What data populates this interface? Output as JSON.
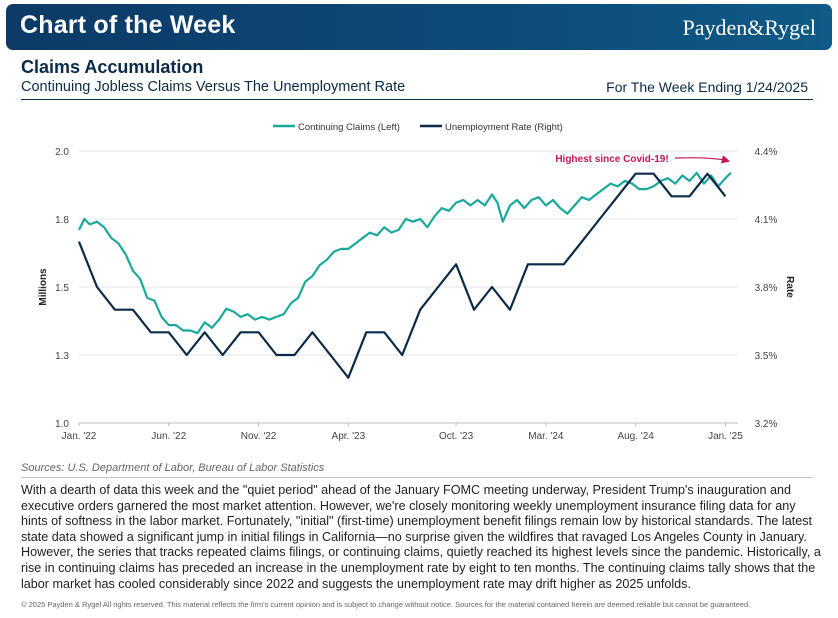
{
  "banner": {
    "title": "Chart of the Week",
    "brand": "Payden&Rygel"
  },
  "header": {
    "headline": "Claims Accumulation",
    "subtitle": "Continuing Jobless Claims Versus The Unemployment Rate",
    "week": "For The Week Ending 1/24/2025"
  },
  "colors": {
    "claims": "#1aa89c",
    "rate": "#0b2a48",
    "annotation": "#c2185b",
    "banner": "#0d3a66"
  },
  "chart_data": {
    "type": "line",
    "legend": [
      "Continuing Claims (Left)",
      "Unemployment Rate (Right)"
    ],
    "legend_position": "top-center",
    "ylabel_left": "Millions",
    "ylabel_right": "Rate",
    "y_left_range": [
      1.0,
      2.0
    ],
    "y_left_ticks": [
      "2.0",
      "1.8",
      "1.5",
      "1.3",
      "1.0"
    ],
    "y_left_tick_values": [
      2.0,
      1.75,
      1.5,
      1.25,
      1.0
    ],
    "y_right_range": [
      3.2,
      4.4
    ],
    "y_right_ticks": [
      "4.4%",
      "4.1%",
      "3.8%",
      "3.5%",
      "3.2%"
    ],
    "y_right_tick_values": [
      4.4,
      4.1,
      3.8,
      3.5,
      3.2
    ],
    "x_range": [
      0,
      36.7
    ],
    "x_ticks": [
      "Jan. '22",
      "Jun. '22",
      "Nov. '22",
      "Apr. '23",
      "Oct. '23",
      "Mar. '24",
      "Aug. '24",
      "Jan. '25"
    ],
    "x_tick_values": [
      0,
      5,
      10,
      15,
      21,
      26,
      31,
      36
    ],
    "annotation": "Highest since Covid-19!",
    "series": [
      {
        "name": "Continuing Claims (Left)",
        "axis": "left",
        "x": [
          0,
          0.3,
          0.6,
          1,
          1.4,
          1.8,
          2.2,
          2.6,
          3,
          3.4,
          3.8,
          4.2,
          4.6,
          5,
          5.4,
          5.8,
          6.2,
          6.6,
          7,
          7.4,
          7.8,
          8.2,
          8.6,
          9,
          9.4,
          9.8,
          10.2,
          10.6,
          11,
          11.4,
          11.8,
          12.2,
          12.6,
          13,
          13.4,
          13.8,
          14.2,
          14.6,
          15,
          15.4,
          15.8,
          16.2,
          16.6,
          17,
          17.4,
          17.8,
          18.2,
          18.6,
          19,
          19.4,
          19.8,
          20.2,
          20.6,
          21,
          21.4,
          21.8,
          22.2,
          22.6,
          23,
          23.3,
          23.6,
          24,
          24.4,
          24.8,
          25.2,
          25.6,
          26,
          26.4,
          26.8,
          27.2,
          27.6,
          28,
          28.4,
          28.8,
          29.2,
          29.6,
          30,
          30.4,
          30.8,
          31.2,
          31.6,
          32,
          32.4,
          32.8,
          33.2,
          33.6,
          34,
          34.4,
          34.8,
          35.2,
          35.6,
          36,
          36.3
        ],
        "values": [
          1.71,
          1.75,
          1.73,
          1.74,
          1.72,
          1.68,
          1.66,
          1.62,
          1.56,
          1.53,
          1.46,
          1.45,
          1.39,
          1.36,
          1.36,
          1.34,
          1.34,
          1.33,
          1.37,
          1.35,
          1.38,
          1.42,
          1.41,
          1.39,
          1.4,
          1.38,
          1.39,
          1.38,
          1.39,
          1.4,
          1.44,
          1.46,
          1.52,
          1.54,
          1.58,
          1.6,
          1.63,
          1.64,
          1.64,
          1.66,
          1.68,
          1.7,
          1.69,
          1.72,
          1.7,
          1.71,
          1.75,
          1.74,
          1.75,
          1.72,
          1.76,
          1.79,
          1.78,
          1.81,
          1.82,
          1.8,
          1.82,
          1.8,
          1.84,
          1.81,
          1.74,
          1.8,
          1.82,
          1.79,
          1.82,
          1.83,
          1.8,
          1.82,
          1.79,
          1.77,
          1.8,
          1.83,
          1.82,
          1.84,
          1.86,
          1.88,
          1.87,
          1.89,
          1.88,
          1.86,
          1.86,
          1.87,
          1.89,
          1.9,
          1.88,
          1.91,
          1.89,
          1.92,
          1.88,
          1.91,
          1.87,
          1.9,
          1.92
        ]
      },
      {
        "name": "Unemployment Rate (Right)",
        "axis": "right",
        "x": [
          0,
          1,
          2,
          3,
          4,
          5,
          6,
          7,
          8,
          9,
          10,
          11,
          12,
          13,
          14,
          15,
          16,
          17,
          18,
          19,
          20,
          21,
          22,
          23,
          24,
          25,
          26,
          27,
          28,
          29,
          30,
          31,
          32,
          33,
          34,
          35,
          36
        ],
        "values": [
          4.0,
          3.8,
          3.7,
          3.7,
          3.6,
          3.6,
          3.5,
          3.6,
          3.5,
          3.6,
          3.6,
          3.5,
          3.5,
          3.6,
          3.5,
          3.4,
          3.6,
          3.6,
          3.5,
          3.7,
          3.8,
          3.9,
          3.7,
          3.8,
          3.7,
          3.9,
          3.9,
          3.9,
          4.0,
          4.1,
          4.2,
          4.3,
          4.3,
          4.2,
          4.2,
          4.3,
          4.2
        ]
      }
    ]
  },
  "sources": "Sources: U.S. Department of Labor, Bureau of Labor Statistics",
  "body_text": "With a dearth of data this week and the \"quiet period\" ahead of the January FOMC meeting underway, President Trump's inauguration and executive orders garnered the most market attention. However, we're closely monitoring weekly unemployment insurance filing data for any hints of softness in the labor market. Fortunately, \"initial\" (first-time) unemployment benefit filings remain low by historical standards. The latest state data showed a significant jump in initial filings in California—no surprise given the wildfires that ravaged Los Angeles County in January. However, the series that tracks repeated claims filings, or continuing claims, quietly reached its highest levels since the pandemic. Historically, a rise in continuing claims has preceded an increase in the unemployment rate by eight to ten months. The continuing claims tally shows that the labor market has cooled considerably since 2022 and suggests the unemployment rate may drift higher as 2025 unfolds.",
  "footer": "© 2025 Payden & Rygel All rights reserved. This material reflects the firm's current opinion and is subject to change without notice. Sources for the material contained herein are deemed reliable but cannot be guaranteed."
}
